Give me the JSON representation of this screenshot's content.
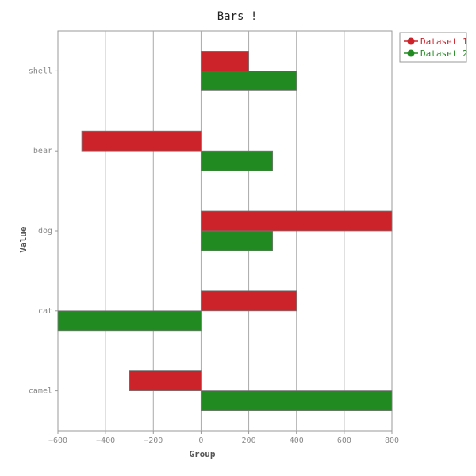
{
  "chart_data": {
    "type": "bar",
    "orientation": "horizontal",
    "title": "Bars !",
    "xlabel": "Group",
    "ylabel": "Value",
    "categories": [
      "shell",
      "bear",
      "dog",
      "cat",
      "camel"
    ],
    "series": [
      {
        "name": "Dataset 1",
        "color": "#cc2229",
        "values": [
          200,
          -500,
          800,
          400,
          -300
        ]
      },
      {
        "name": "Dataset 2",
        "color": "#218b21",
        "values": [
          400,
          300,
          300,
          -600,
          800
        ]
      }
    ],
    "xlim": [
      -600,
      800
    ],
    "xticks": [
      -600,
      -400,
      -200,
      0,
      200,
      400,
      600,
      800
    ],
    "grid": true,
    "legend_position": "top-right"
  }
}
